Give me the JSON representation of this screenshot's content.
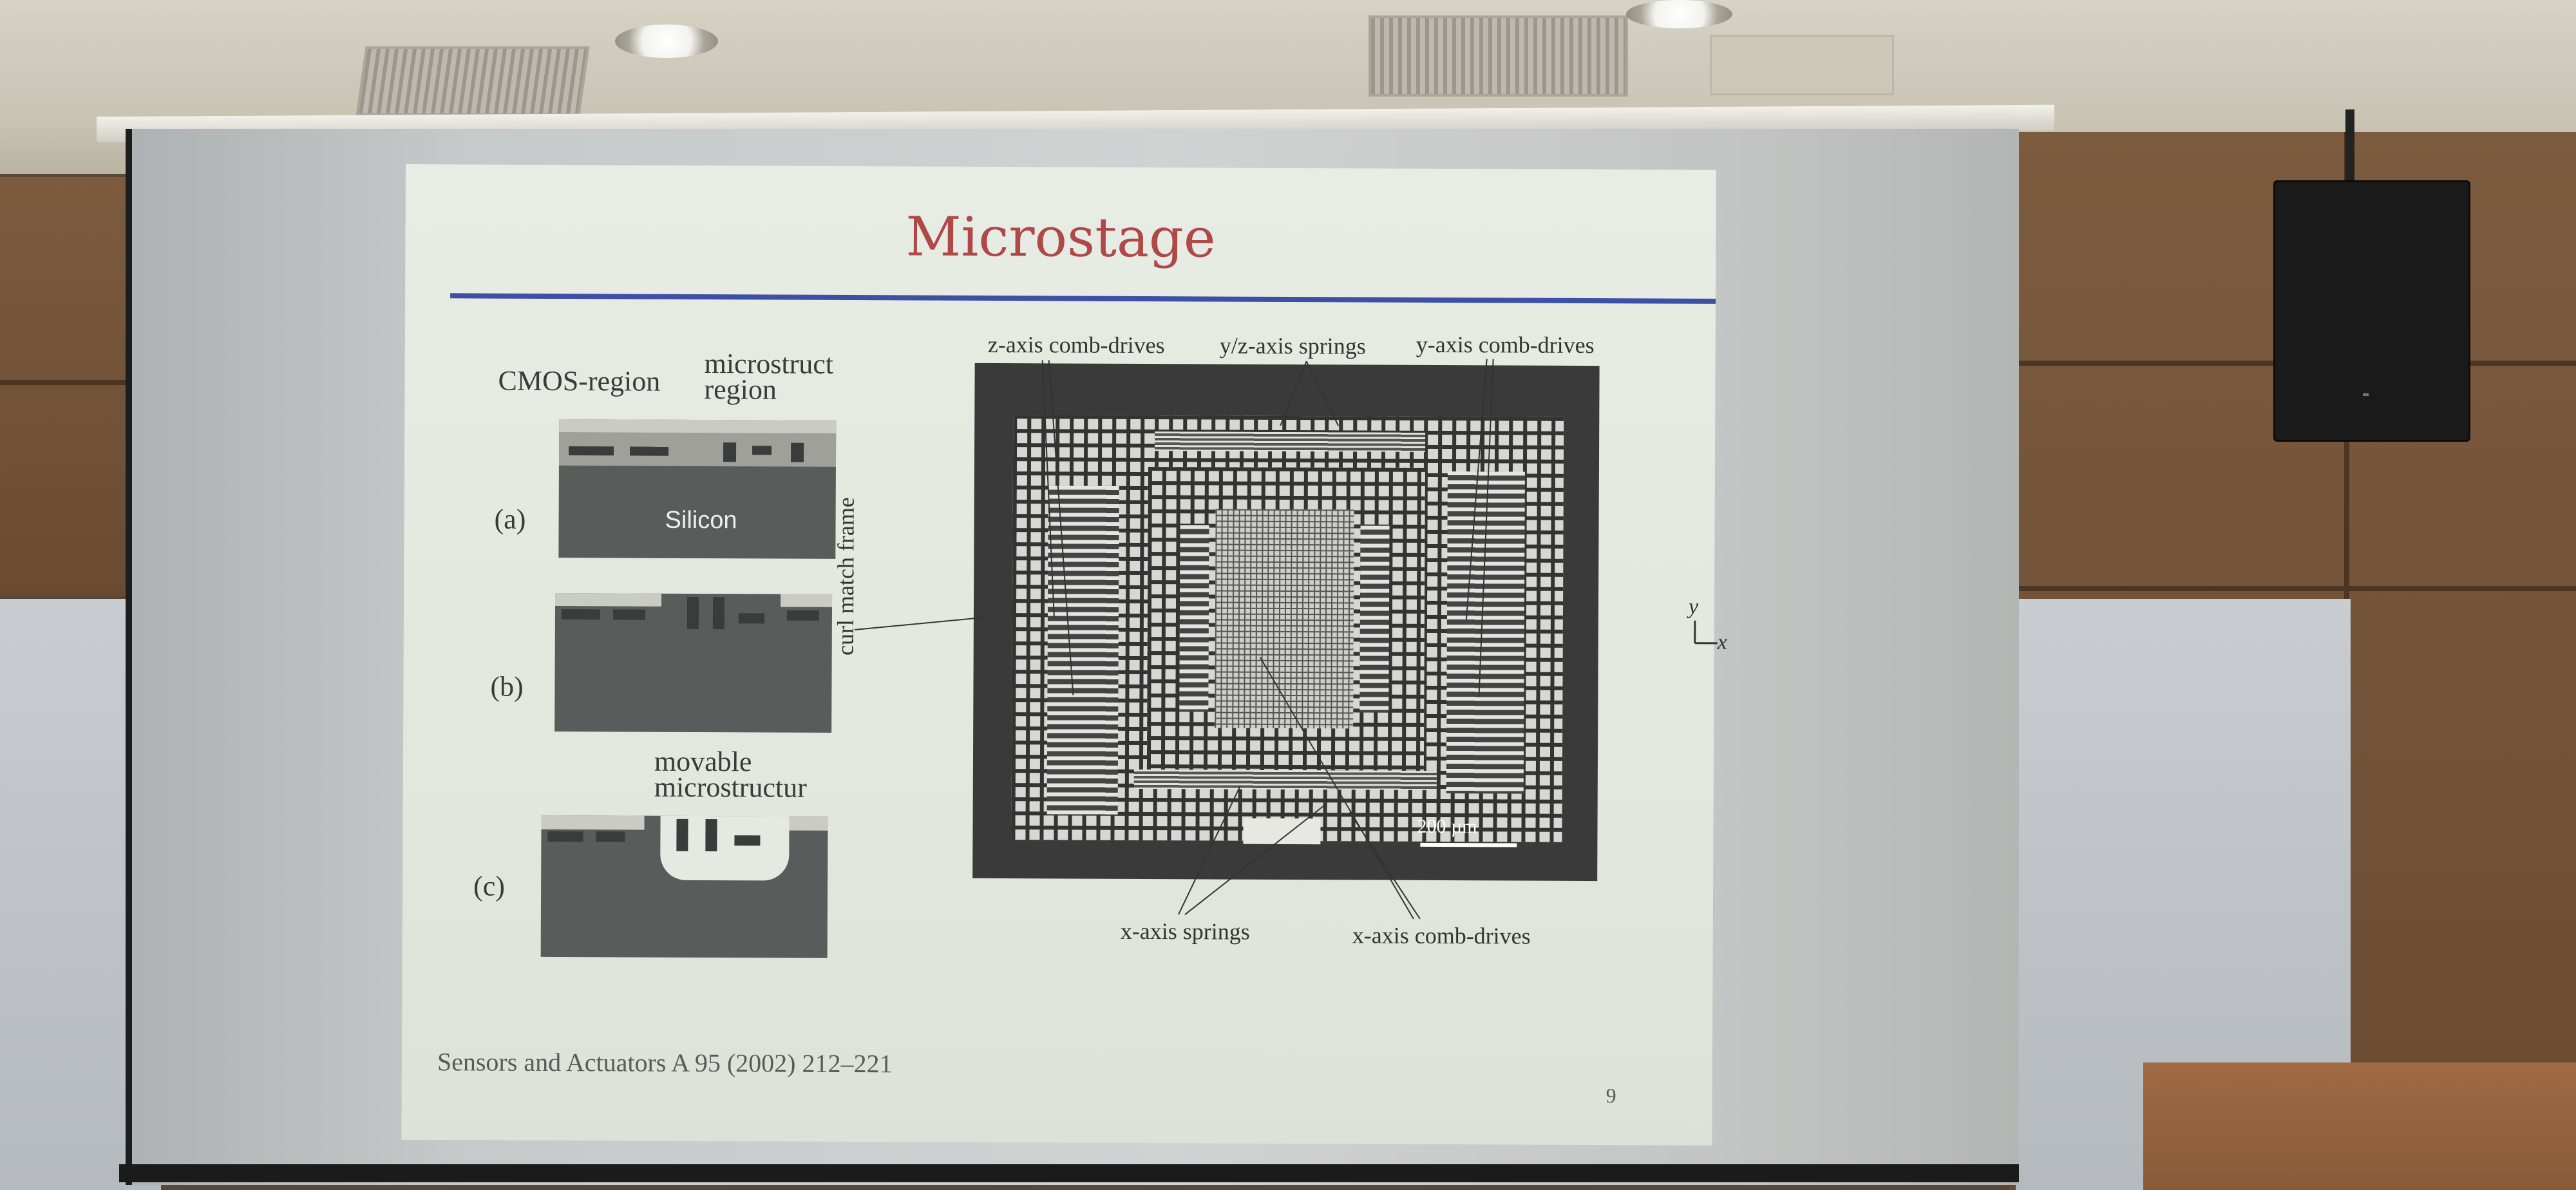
{
  "slide": {
    "title": "Microstage",
    "page_number": "9",
    "citation": "Sensors and Actuators A 95 (2002) 212–221"
  },
  "process_figure": {
    "cmos_label": "CMOS-region",
    "micro_label_1": "microstruct",
    "micro_label_2": "region",
    "silicon_label": "Silicon",
    "step_a": "(a)",
    "step_b": "(b)",
    "step_c": "(c)",
    "movable_1": "movable",
    "movable_2": "microstructur"
  },
  "micrograph": {
    "z_comb": "z-axis comb-drives",
    "yz_springs": "y/z-axis springs",
    "y_comb": "y-axis comb-drives",
    "curl_frame": "curl match frame",
    "x_springs": "x-axis springs",
    "x_comb": "x-axis comb-drives",
    "scale_bar": "200 µm",
    "axis_y": "y",
    "axis_x": "x"
  },
  "colors": {
    "title": "#b04848",
    "rule": "#3e4fa6",
    "slide_bg": "#e5eae2"
  }
}
